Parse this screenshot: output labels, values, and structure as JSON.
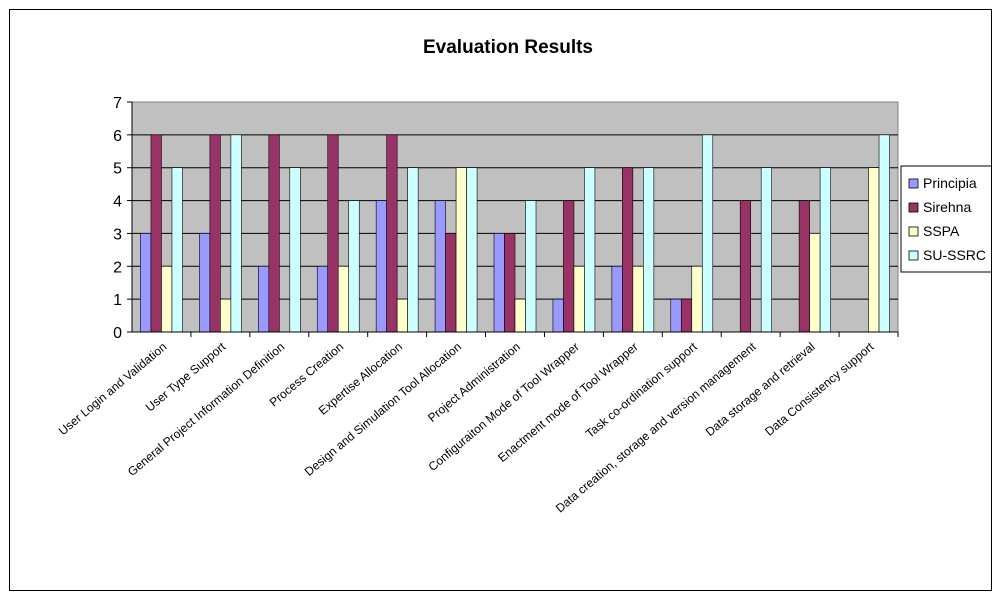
{
  "chart_data": {
    "type": "bar",
    "title": "Evaluation Results",
    "categories": [
      "User Login and Validation",
      "User Type Support",
      "General Project Information Definition",
      "Process Creation",
      "Expertise Allocation",
      "Design and Simulation Tool Allocation",
      "Project Administration",
      "Configuraiton Mode of Tool Wrapper",
      "Enactment mode of Tool Wrapper",
      "Task co-ordination support",
      "Data creation, storage and version management",
      "Data storage and retrieval",
      "Data Consistency support"
    ],
    "series": [
      {
        "name": "Principia",
        "color": "#9999ff",
        "values": [
          3,
          3,
          2,
          2,
          4,
          4,
          3,
          1,
          2,
          1,
          0,
          0,
          0
        ]
      },
      {
        "name": "Sirehna",
        "color": "#993366",
        "values": [
          6,
          6,
          6,
          6,
          6,
          3,
          3,
          4,
          5,
          1,
          4,
          4,
          0
        ]
      },
      {
        "name": "SSPA",
        "color": "#ffffcc",
        "values": [
          2,
          1,
          0,
          2,
          1,
          5,
          1,
          2,
          2,
          2,
          0,
          3,
          5
        ]
      },
      {
        "name": "SU-SSRC",
        "color": "#ccffff",
        "values": [
          5,
          6,
          5,
          4,
          5,
          5,
          4,
          5,
          5,
          6,
          5,
          5,
          6
        ]
      }
    ],
    "ylim": [
      0,
      7
    ],
    "yticks": [
      "0",
      "1",
      "2",
      "3",
      "4",
      "5",
      "6",
      "7"
    ],
    "grid": true,
    "plot_background": "#c0c0c0",
    "legend_position": "right"
  }
}
